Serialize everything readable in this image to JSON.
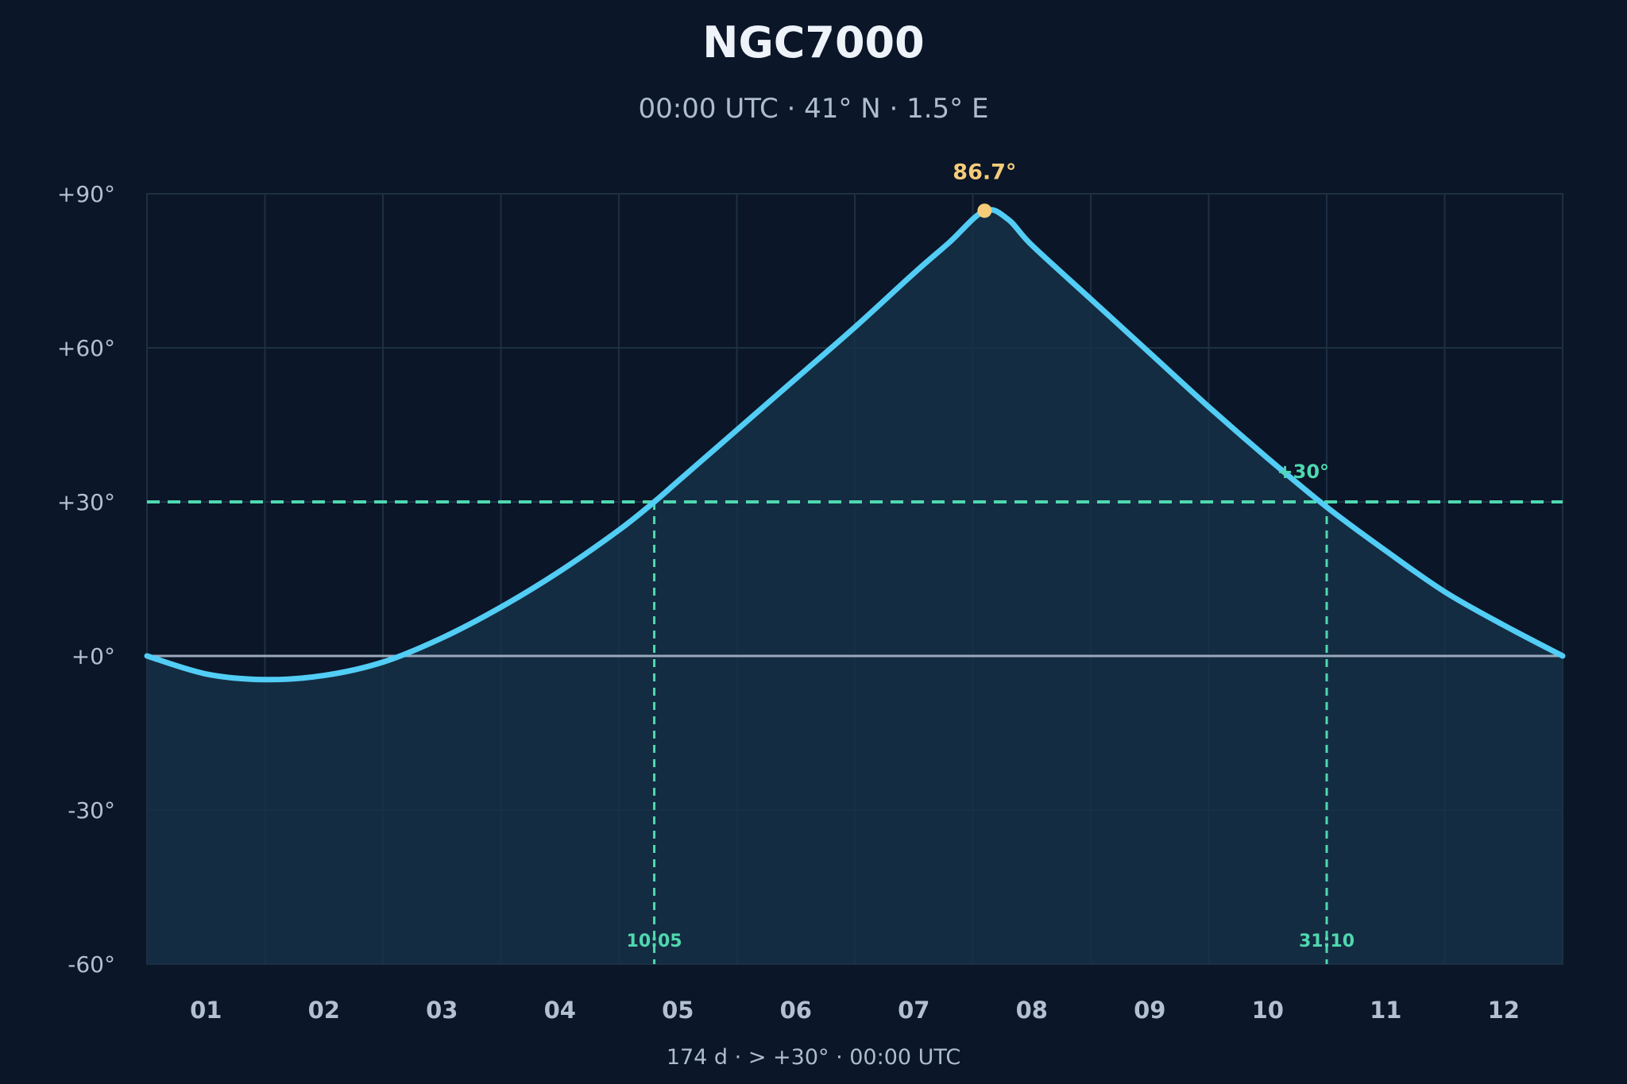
{
  "chart_data": {
    "type": "area",
    "title": "NGC7000",
    "subtitle": "00:00 UTC · 41° N · 1.5° E",
    "y_ticks": [
      "+90°",
      "+60°",
      "+30°",
      "+0°",
      "-30°",
      "-60°"
    ],
    "ylim": [
      -60,
      90
    ],
    "x_ticks": [
      "01",
      "02",
      "03",
      "04",
      "05",
      "06",
      "07",
      "08",
      "09",
      "10",
      "11",
      "12"
    ],
    "x_unit_range": [
      0.5,
      12.5
    ],
    "series": [
      {
        "x": [
          0.5,
          1.0,
          1.5,
          2.0,
          2.5,
          3.0,
          3.5,
          4.0,
          4.5,
          4.8,
          5.0,
          5.5,
          6.0,
          6.5,
          7.0,
          7.3,
          7.6,
          7.8,
          8.0,
          8.5,
          9.0,
          9.5,
          10.0,
          10.5,
          11.0,
          11.5,
          12.0,
          12.5
        ],
        "y": [
          0,
          -3.5,
          -4.6,
          -3.8,
          -1.2,
          3.5,
          9.5,
          16.5,
          24.5,
          30,
          34,
          44,
          54,
          64,
          74.5,
          80.5,
          86.7,
          85,
          80,
          69.5,
          59,
          48.5,
          38.5,
          29,
          20.5,
          12.5,
          6,
          0
        ]
      }
    ],
    "threshold": {
      "value": 30,
      "label": "+30°"
    },
    "peak": {
      "x": 7.6,
      "value": 86.7,
      "label": "86.7°"
    },
    "crossings": [
      {
        "x": 4.8,
        "label": "10:05"
      },
      {
        "x": 10.5,
        "label": "31:10"
      }
    ],
    "grid": true,
    "colors": {
      "background": "#0b1628",
      "line": "#52cdf5",
      "area": "#163045",
      "threshold": "#4fd8b0",
      "peak": "#f6cc7a",
      "zero": "#9aa9bc"
    }
  },
  "footer": "174 d  ·  > +30°  ·  00:00 UTC"
}
